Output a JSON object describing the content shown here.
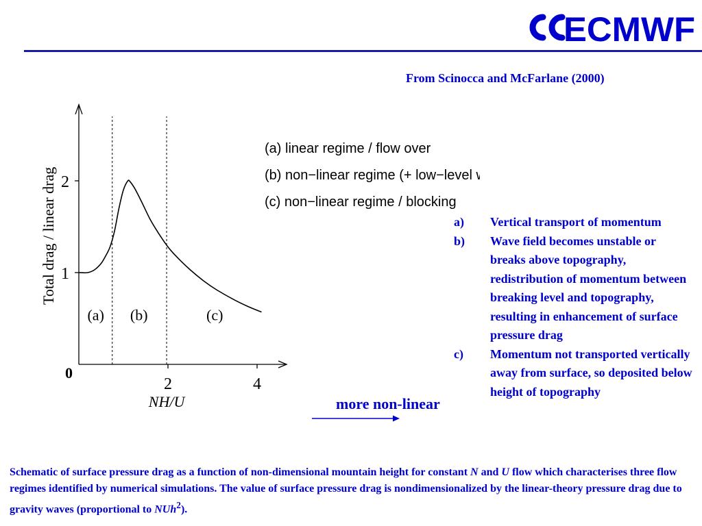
{
  "header": {
    "logo_text": "ECMWF",
    "brand_color": "#0000cc",
    "rule_color": "#1a1aa8"
  },
  "source": "From Scinocca and McFarlane (2000)",
  "chart_data": {
    "type": "line",
    "ylabel": "Total drag / linear drag",
    "xlabel": "NH/U",
    "x_ticks": [
      "2",
      "4"
    ],
    "y_ticks": [
      "1",
      "2"
    ],
    "origin_label": "0",
    "xlim": [
      0,
      4.2
    ],
    "ylim": [
      0,
      2.8
    ],
    "regime_boundaries": [
      0.75,
      1.97
    ],
    "regime_labels": [
      {
        "label": "(a)",
        "x": 0.38,
        "y": 0.48
      },
      {
        "label": "(b)",
        "x": 1.35,
        "y": 0.48
      },
      {
        "label": "(c)",
        "x": 3.05,
        "y": 0.48
      }
    ],
    "legend": [
      "(a) linear regime / flow over",
      "(b) non−linear regime (+ low−level wave breaking)",
      "(c) non−linear regime / blocking"
    ],
    "series": [
      {
        "x": [
          0.0,
          0.2,
          0.35,
          0.5,
          0.6,
          0.7,
          0.8,
          0.9,
          1.0,
          1.1,
          1.15,
          1.25,
          1.4,
          1.6,
          1.8,
          2.0,
          2.2,
          2.5,
          2.8,
          3.1,
          3.5,
          3.8,
          4.1
        ],
        "y": [
          1.0,
          1.0,
          1.03,
          1.1,
          1.18,
          1.28,
          1.45,
          1.7,
          1.9,
          2.0,
          1.99,
          1.92,
          1.78,
          1.58,
          1.42,
          1.28,
          1.17,
          1.03,
          0.91,
          0.81,
          0.7,
          0.63,
          0.57
        ]
      }
    ]
  },
  "notes": [
    {
      "marker": "a)",
      "text": "Vertical transport of momentum"
    },
    {
      "marker": "b)",
      "text": "Wave field becomes unstable or breaks above topography, redistribution of momentum between breaking level and topography, resulting in enhancement of surface pressure drag"
    },
    {
      "marker": "c)",
      "text": "Momentum not transported vertically away from surface, so deposited below height of topography"
    }
  ],
  "more_label": "more non-linear",
  "caption": {
    "p1": "Schematic of surface pressure drag as a function of non-dimensional mountain height for constant ",
    "v1": "N",
    "p2": " and ",
    "v2": "U",
    "p3": " flow which characterises three flow regimes identified by numerical simulations.  The value of surface pressure drag is nondimensionalized by the linear-theory pressure drag due to gravity waves (proportional to ",
    "v3": "NUh",
    "sup": "2",
    "p4": ")."
  }
}
